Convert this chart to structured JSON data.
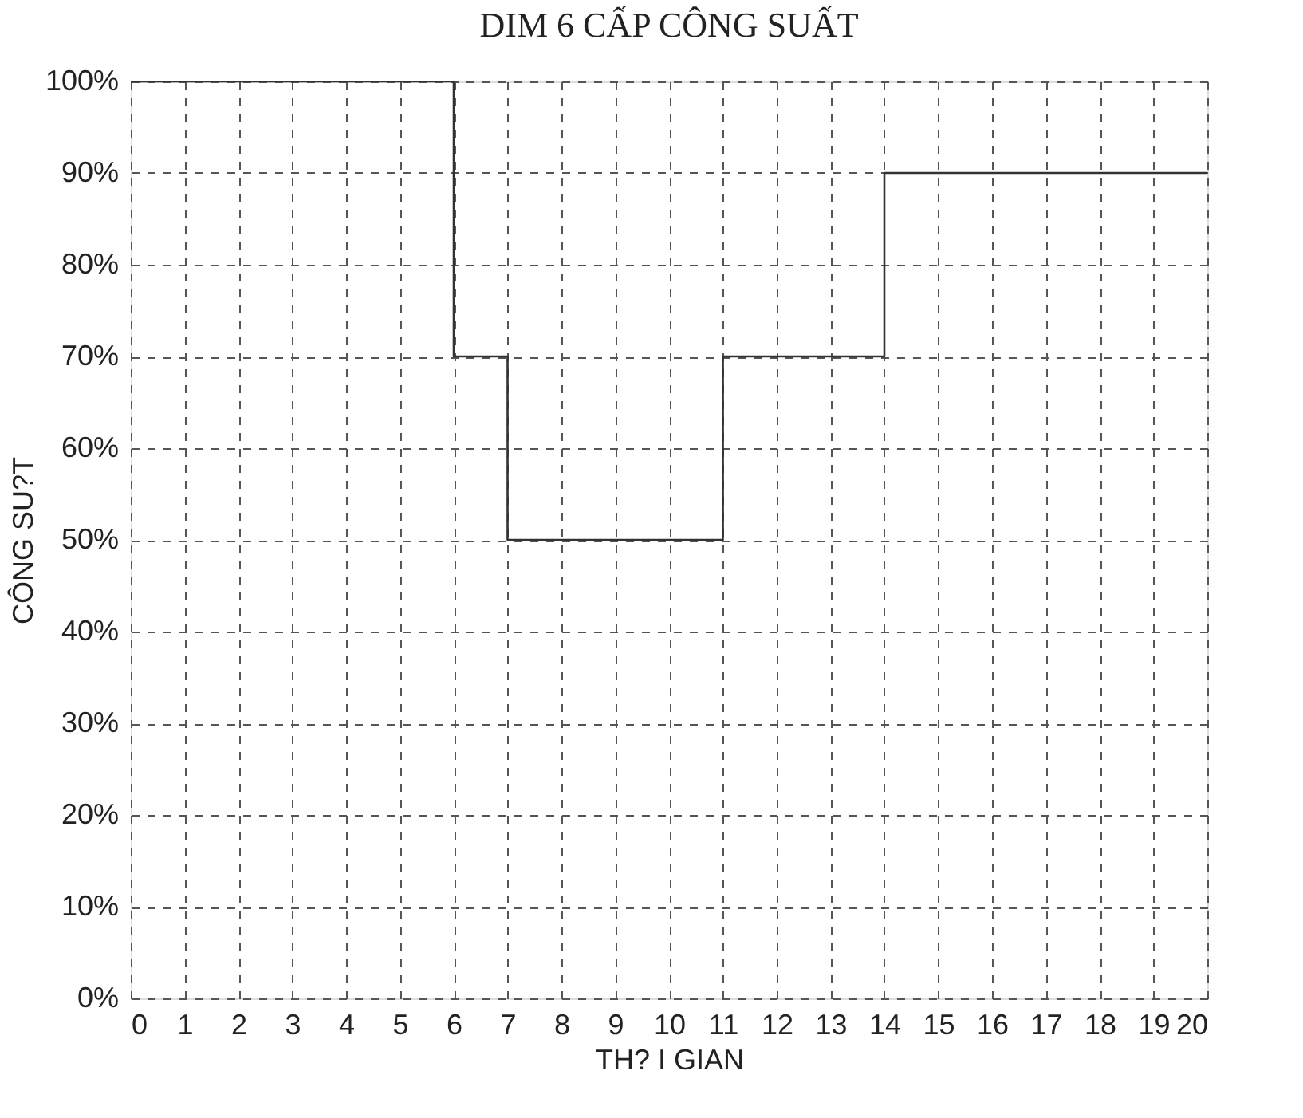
{
  "chart_data": {
    "type": "step",
    "title": "DIM 6 CẤP CÔNG SUẤT",
    "xlabel": "TH? I GIAN",
    "ylabel": "CÔNG SU?T",
    "x": [
      0,
      6,
      7,
      11,
      14,
      20
    ],
    "series": [
      {
        "color": "#333333",
        "values": [
          100,
          70,
          50,
          70,
          90,
          90
        ]
      }
    ],
    "xlim": [
      0,
      20
    ],
    "xticks": [
      0,
      1,
      2,
      3,
      4,
      5,
      6,
      7,
      8,
      9,
      10,
      11,
      12,
      13,
      14,
      15,
      16,
      17,
      18,
      19,
      20
    ],
    "ylim": [
      0,
      100
    ],
    "yticks": [
      {
        "value": 0,
        "label": "0%"
      },
      {
        "value": 10,
        "label": "10%"
      },
      {
        "value": 20,
        "label": "20%"
      },
      {
        "value": 30,
        "label": "30%"
      },
      {
        "value": 40,
        "label": "40%"
      },
      {
        "value": 50,
        "label": "50%"
      },
      {
        "value": 60,
        "label": "60%"
      },
      {
        "value": 70,
        "label": "70%"
      },
      {
        "value": 80,
        "label": "80%"
      },
      {
        "value": 90,
        "label": "90%"
      },
      {
        "value": 100,
        "label": "100%"
      }
    ],
    "grid": true,
    "marker": "none",
    "line_style": "solid"
  }
}
